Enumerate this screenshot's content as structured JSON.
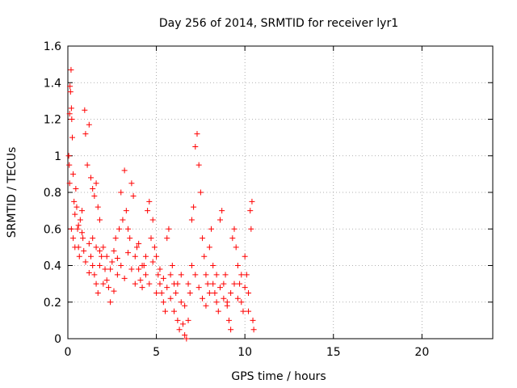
{
  "chart_data": {
    "type": "scatter",
    "title": "Day 256 of 2014, SRMTID for receiver lyr1",
    "xlabel": "GPS time / hours",
    "ylabel": "SRMTID / TECUs",
    "xlim": [
      0,
      24
    ],
    "ylim": [
      0,
      1.6
    ],
    "x_ticks": [
      "0",
      "5",
      "10",
      "15",
      "20"
    ],
    "y_ticks": [
      "0",
      "0.2",
      "0.4",
      "0.6",
      "0.8",
      "1",
      "1.2",
      "1.4",
      "1.6"
    ],
    "grid": true,
    "marker": "plus",
    "color": "#ff0000",
    "series": [
      {
        "name": "lyr1",
        "points": [
          [
            0.05,
            1.0
          ],
          [
            0.1,
            1.23
          ],
          [
            0.12,
            1.38
          ],
          [
            0.15,
            1.35
          ],
          [
            0.18,
            1.47
          ],
          [
            0.2,
            1.26
          ],
          [
            0.22,
            1.2
          ],
          [
            0.08,
            0.95
          ],
          [
            0.25,
            1.1
          ],
          [
            0.3,
            0.9
          ],
          [
            0.1,
            0.85
          ],
          [
            0.35,
            0.75
          ],
          [
            0.4,
            0.68
          ],
          [
            0.45,
            0.82
          ],
          [
            0.5,
            0.72
          ],
          [
            0.2,
            0.6
          ],
          [
            0.3,
            0.55
          ],
          [
            0.55,
            0.6
          ],
          [
            0.6,
            0.5
          ],
          [
            0.65,
            0.45
          ],
          [
            0.7,
            0.65
          ],
          [
            0.8,
            0.7
          ],
          [
            0.85,
            0.55
          ],
          [
            0.9,
            0.48
          ],
          [
            0.95,
            1.25
          ],
          [
            1.0,
            1.12
          ],
          [
            1.2,
            1.17
          ],
          [
            1.1,
            0.95
          ],
          [
            1.3,
            0.88
          ],
          [
            1.4,
            0.82
          ],
          [
            1.5,
            0.78
          ],
          [
            1.6,
            0.85
          ],
          [
            1.7,
            0.72
          ],
          [
            1.8,
            0.65
          ],
          [
            1.2,
            0.52
          ],
          [
            1.3,
            0.45
          ],
          [
            1.4,
            0.4
          ],
          [
            1.5,
            0.35
          ],
          [
            1.6,
            0.3
          ],
          [
            1.7,
            0.25
          ],
          [
            1.8,
            0.4
          ],
          [
            1.9,
            0.45
          ],
          [
            2.0,
            0.5
          ],
          [
            2.1,
            0.38
          ],
          [
            2.2,
            0.32
          ],
          [
            2.3,
            0.28
          ],
          [
            2.4,
            0.2
          ],
          [
            2.5,
            0.42
          ],
          [
            2.6,
            0.48
          ],
          [
            2.7,
            0.55
          ],
          [
            2.8,
            0.35
          ],
          [
            2.9,
            0.6
          ],
          [
            3.0,
            0.8
          ],
          [
            3.1,
            0.65
          ],
          [
            3.2,
            0.92
          ],
          [
            3.3,
            0.7
          ],
          [
            3.4,
            0.6
          ],
          [
            3.5,
            0.55
          ],
          [
            3.6,
            0.85
          ],
          [
            3.7,
            0.78
          ],
          [
            3.8,
            0.45
          ],
          [
            3.9,
            0.5
          ],
          [
            4.0,
            0.38
          ],
          [
            4.1,
            0.32
          ],
          [
            4.2,
            0.28
          ],
          [
            4.3,
            0.4
          ],
          [
            4.4,
            0.45
          ],
          [
            4.5,
            0.7
          ],
          [
            4.6,
            0.75
          ],
          [
            4.7,
            0.55
          ],
          [
            4.8,
            0.65
          ],
          [
            4.9,
            0.5
          ],
          [
            5.0,
            0.45
          ],
          [
            5.1,
            0.35
          ],
          [
            5.2,
            0.3
          ],
          [
            5.3,
            0.25
          ],
          [
            5.4,
            0.2
          ],
          [
            5.5,
            0.15
          ],
          [
            5.6,
            0.55
          ],
          [
            5.7,
            0.6
          ],
          [
            5.8,
            0.35
          ],
          [
            5.9,
            0.4
          ],
          [
            6.0,
            0.3
          ],
          [
            6.1,
            0.25
          ],
          [
            6.2,
            0.1
          ],
          [
            6.3,
            0.05
          ],
          [
            6.4,
            0.2
          ],
          [
            6.5,
            0.08
          ],
          [
            6.6,
            0.02
          ],
          [
            6.7,
            0.0
          ],
          [
            6.8,
            0.1
          ],
          [
            6.9,
            0.25
          ],
          [
            7.0,
            0.65
          ],
          [
            7.1,
            0.72
          ],
          [
            7.2,
            1.05
          ],
          [
            7.3,
            1.12
          ],
          [
            7.4,
            0.95
          ],
          [
            7.5,
            0.8
          ],
          [
            7.6,
            0.55
          ],
          [
            7.7,
            0.45
          ],
          [
            7.8,
            0.35
          ],
          [
            7.9,
            0.3
          ],
          [
            8.0,
            0.5
          ],
          [
            8.1,
            0.6
          ],
          [
            8.2,
            0.4
          ],
          [
            8.3,
            0.25
          ],
          [
            8.4,
            0.2
          ],
          [
            8.5,
            0.15
          ],
          [
            8.6,
            0.65
          ],
          [
            8.7,
            0.7
          ],
          [
            8.8,
            0.3
          ],
          [
            8.9,
            0.35
          ],
          [
            9.0,
            0.2
          ],
          [
            9.1,
            0.1
          ],
          [
            9.2,
            0.05
          ],
          [
            9.3,
            0.55
          ],
          [
            9.4,
            0.6
          ],
          [
            9.5,
            0.5
          ],
          [
            9.6,
            0.4
          ],
          [
            9.7,
            0.3
          ],
          [
            9.8,
            0.2
          ],
          [
            9.9,
            0.15
          ],
          [
            10.0,
            0.45
          ],
          [
            10.1,
            0.35
          ],
          [
            10.2,
            0.25
          ],
          [
            10.3,
            0.7
          ],
          [
            10.4,
            0.75
          ],
          [
            10.5,
            0.05
          ],
          [
            10.45,
            0.1
          ],
          [
            10.35,
            0.6
          ],
          [
            0.4,
            0.5
          ],
          [
            0.6,
            0.62
          ],
          [
            0.8,
            0.58
          ],
          [
            1.0,
            0.42
          ],
          [
            1.2,
            0.36
          ],
          [
            1.4,
            0.55
          ],
          [
            1.6,
            0.5
          ],
          [
            1.8,
            0.48
          ],
          [
            2.0,
            0.3
          ],
          [
            2.2,
            0.45
          ],
          [
            2.4,
            0.38
          ],
          [
            2.6,
            0.26
          ],
          [
            2.8,
            0.44
          ],
          [
            3.0,
            0.4
          ],
          [
            3.2,
            0.33
          ],
          [
            3.4,
            0.47
          ],
          [
            3.6,
            0.38
          ],
          [
            3.8,
            0.3
          ],
          [
            4.0,
            0.52
          ],
          [
            4.2,
            0.4
          ],
          [
            4.4,
            0.35
          ],
          [
            4.6,
            0.3
          ],
          [
            4.8,
            0.42
          ],
          [
            5.0,
            0.25
          ],
          [
            5.2,
            0.38
          ],
          [
            5.4,
            0.33
          ],
          [
            5.6,
            0.28
          ],
          [
            5.8,
            0.22
          ],
          [
            6.0,
            0.15
          ],
          [
            6.2,
            0.3
          ],
          [
            6.4,
            0.35
          ],
          [
            6.6,
            0.18
          ],
          [
            6.8,
            0.3
          ],
          [
            7.0,
            0.4
          ],
          [
            7.2,
            0.35
          ],
          [
            7.4,
            0.28
          ],
          [
            7.6,
            0.22
          ],
          [
            7.8,
            0.18
          ],
          [
            8.0,
            0.25
          ],
          [
            8.2,
            0.3
          ],
          [
            8.4,
            0.35
          ],
          [
            8.6,
            0.28
          ],
          [
            8.8,
            0.22
          ],
          [
            9.0,
            0.18
          ],
          [
            9.2,
            0.25
          ],
          [
            9.4,
            0.3
          ],
          [
            9.6,
            0.22
          ],
          [
            9.8,
            0.35
          ],
          [
            10.0,
            0.28
          ],
          [
            10.2,
            0.15
          ]
        ]
      }
    ]
  }
}
